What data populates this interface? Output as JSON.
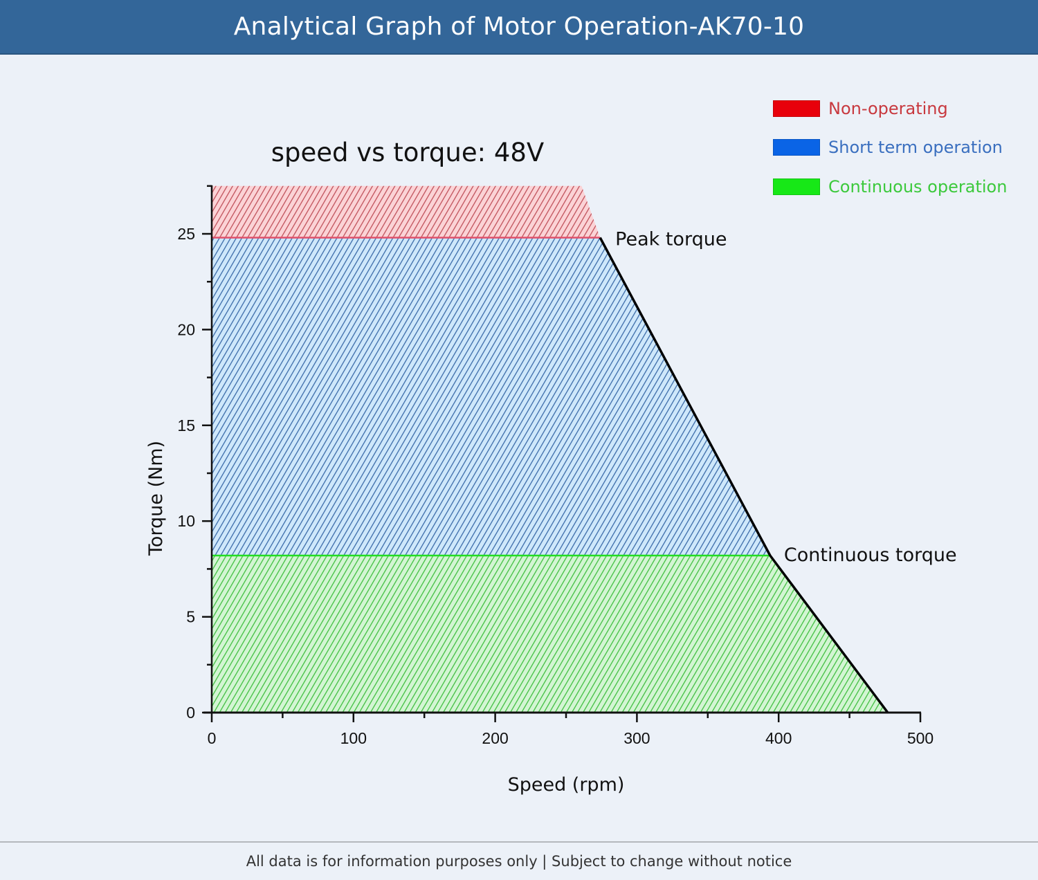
{
  "header": {
    "title": "Analytical Graph of Motor Operation-AK70-10"
  },
  "footer": {
    "text": "All data is for information purposes only | Subject to change without notice"
  },
  "legend": {
    "items": [
      {
        "label": "Non-operating",
        "swatch_color": "#e8000b",
        "text_color": "#c8393f"
      },
      {
        "label": "Short term operation",
        "swatch_color": "#0a64e6",
        "text_color": "#3a6fbf"
      },
      {
        "label": "Continuous operation",
        "swatch_color": "#17e817",
        "text_color": "#3cc93c"
      }
    ]
  },
  "colors": {
    "red_hatch": "#c0505a",
    "red_bg": "#fbd3d6",
    "red_line": "#e0506a",
    "blue_hatch": "#3a6aa8",
    "blue_bg": "#cfe8fb",
    "green_hatch": "#3fbf3f",
    "green_bg": "#d3f5d3",
    "green_line": "#22dd22",
    "axis": "#111111",
    "curve": "#000000"
  },
  "chart_data": {
    "type": "area",
    "title": "speed vs torque: 48V",
    "xlabel": "Speed (rpm)",
    "ylabel": "Torque (Nm)",
    "xlim": [
      0,
      500
    ],
    "ylim": [
      0,
      27.5
    ],
    "x_ticks": [
      0,
      100,
      200,
      300,
      400,
      500
    ],
    "x_tick_labels": [
      "0",
      "100",
      "200",
      "300",
      "400",
      "500"
    ],
    "x_minor_ticks": [
      50,
      150,
      250,
      350,
      450
    ],
    "y_ticks": [
      0,
      5,
      10,
      15,
      20,
      25
    ],
    "y_tick_labels": [
      "0",
      "5",
      "10",
      "15",
      "20",
      "25"
    ],
    "y_minor_ticks": [
      2.5,
      7.5,
      12.5,
      17.5,
      22.5,
      27.5
    ],
    "grid": false,
    "legend_position": "top-right",
    "series": [
      {
        "name": "Non-operating",
        "region": [
          [
            0,
            24.8
          ],
          [
            0,
            27.5
          ],
          [
            261,
            27.5
          ],
          [
            274,
            24.8
          ]
        ]
      },
      {
        "name": "Short term operation",
        "region": [
          [
            0,
            8.2
          ],
          [
            0,
            24.8
          ],
          [
            274,
            24.8
          ],
          [
            394,
            8.2
          ]
        ]
      },
      {
        "name": "Continuous operation",
        "region": [
          [
            0,
            0
          ],
          [
            0,
            8.2
          ],
          [
            394,
            8.2
          ],
          [
            477,
            0
          ]
        ]
      }
    ],
    "boundary_curve": [
      [
        274,
        24.8
      ],
      [
        394,
        8.2
      ],
      [
        477,
        0
      ]
    ],
    "peak_torque_line": 24.8,
    "continuous_torque_line": 8.2,
    "annotations": [
      {
        "text": "Peak torque",
        "x": 274,
        "y": 24.8
      },
      {
        "text": "Continuous torque",
        "x": 394,
        "y": 8.2
      }
    ]
  }
}
